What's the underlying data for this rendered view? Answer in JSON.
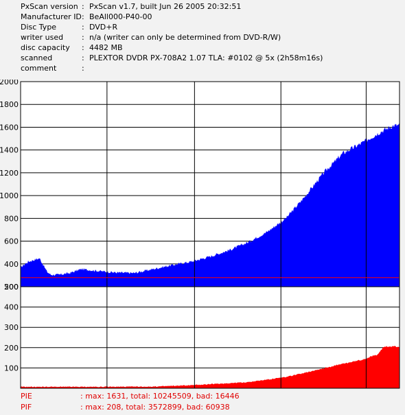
{
  "info": [
    {
      "key": "PxScan version",
      "value": "PxScan v1.7, built Jun 26 2005 20:32:51"
    },
    {
      "key": "Manufacturer ID",
      "value": "BeAll000-P40-00"
    },
    {
      "key": "Disc Type",
      "value": "DVD+R"
    },
    {
      "key": "writer used",
      "value": "n/a (writer can only be determined from DVD-R/W)"
    },
    {
      "key": "disc capacity",
      "value": "4482 MB"
    },
    {
      "key": "scanned",
      "value": "PLEXTOR DVDR PX-708A2 1.07 TLA: #0102 @ 5x (2h58m16s)"
    },
    {
      "key": "comment",
      "value": ""
    }
  ],
  "separator": ":",
  "legend": {
    "pie": {
      "name": "PIE",
      "stats": ": max: 1631, total: 10245509, bad: 16446"
    },
    "pif": {
      "name": "PIF",
      "stats": ": max: 208, total: 3572899, bad: 60938"
    }
  },
  "colors": {
    "background": "#f2f2f2",
    "plot_background": "#ffffff",
    "grid": "#000000",
    "pie": "#0000ff",
    "pif": "#ff0000",
    "legend_text": "#e00000"
  },
  "chart_data": [
    {
      "type": "area",
      "name": "PIE",
      "ylim": [
        200,
        2000
      ],
      "yticks": [
        200,
        400,
        600,
        800,
        1000,
        1200,
        1400,
        1600,
        1800,
        2000
      ],
      "x": [
        0,
        0.02,
        0.05,
        0.07,
        0.08,
        0.1,
        0.13,
        0.16,
        0.2,
        0.25,
        0.3,
        0.35,
        0.4,
        0.45,
        0.5,
        0.55,
        0.6,
        0.65,
        0.7,
        0.75,
        0.8,
        0.85,
        0.9,
        0.95,
        0.98,
        1.0
      ],
      "values": [
        370,
        420,
        450,
        330,
        305,
        305,
        320,
        355,
        340,
        325,
        320,
        355,
        390,
        420,
        465,
        520,
        590,
        680,
        800,
        990,
        1200,
        1370,
        1460,
        1560,
        1610,
        1620
      ],
      "threshold": 280
    },
    {
      "type": "area",
      "name": "PIF",
      "ylim": [
        0,
        500
      ],
      "yticks": [
        100,
        200,
        300,
        400,
        500
      ],
      "x": [
        0,
        0.2,
        0.35,
        0.45,
        0.6,
        0.7,
        0.78,
        0.85,
        0.9,
        0.94,
        0.96,
        1.0
      ],
      "values": [
        7,
        7,
        8,
        15,
        30,
        55,
        90,
        120,
        140,
        165,
        205,
        205
      ]
    }
  ]
}
